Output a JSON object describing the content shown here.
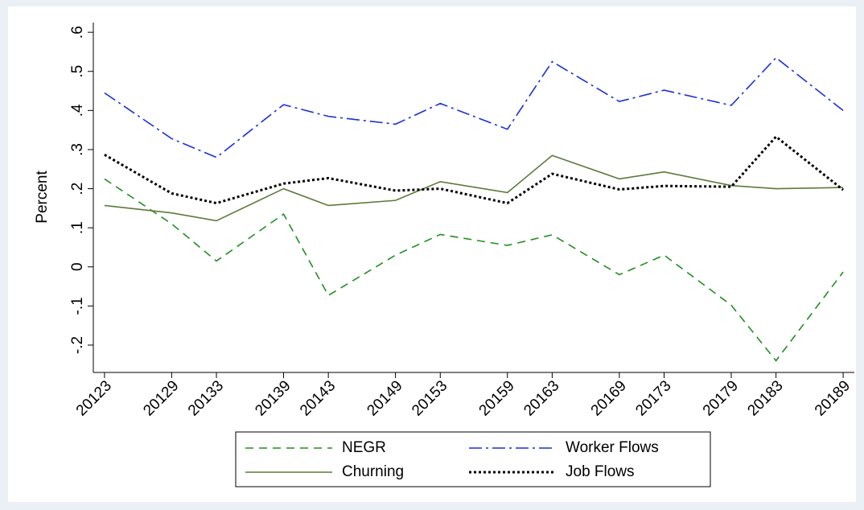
{
  "chart_data": {
    "type": "line",
    "y_label": "Percent",
    "x": [
      20123,
      20129,
      20133,
      20139,
      20143,
      20149,
      20153,
      20159,
      20163,
      20169,
      20173,
      20179,
      20183,
      20189
    ],
    "series": [
      {
        "name": "NEGR",
        "color": "#1f8f1f",
        "values": [
          0.225,
          0.11,
          0.015,
          0.135,
          -0.073,
          0.03,
          0.083,
          0.055,
          0.082,
          -0.02,
          0.03,
          -0.098,
          -0.24,
          -0.013
        ]
      },
      {
        "name": "Worker Flows",
        "color": "#1c2fd8",
        "values": [
          0.445,
          0.328,
          0.28,
          0.415,
          0.385,
          0.365,
          0.418,
          0.352,
          0.525,
          0.423,
          0.452,
          0.413,
          0.535,
          0.4
        ]
      },
      {
        "name": "Churning",
        "color": "#5b7a3b",
        "values": [
          0.157,
          0.138,
          0.118,
          0.2,
          0.157,
          0.17,
          0.218,
          0.19,
          0.285,
          0.225,
          0.243,
          0.208,
          0.2,
          0.203
        ]
      },
      {
        "name": "Job Flows",
        "color": "#000000",
        "values": [
          0.287,
          0.188,
          0.163,
          0.213,
          0.227,
          0.195,
          0.2,
          0.163,
          0.238,
          0.198,
          0.207,
          0.205,
          0.333,
          0.197
        ]
      }
    ],
    "xlim": [
      20122,
      20190
    ],
    "xticks": [
      20123,
      20129,
      20133,
      20139,
      20143,
      20149,
      20153,
      20159,
      20163,
      20169,
      20173,
      20179,
      20183,
      20189
    ],
    "ylim": [
      -0.27,
      0.625
    ],
    "yticks": [
      {
        "value": -0.2,
        "label": "-.2"
      },
      {
        "value": -0.1,
        "label": "-.1"
      },
      0,
      {
        "value": 0.1,
        "label": ".1"
      },
      {
        "value": 0.2,
        "label": ".2"
      },
      {
        "value": 0.3,
        "label": ".3"
      },
      {
        "value": 0.4,
        "label": ".4"
      },
      {
        "value": 0.5,
        "label": ".5"
      },
      {
        "value": 0.6,
        "label": ".6"
      }
    ],
    "grid": false,
    "legend_position": "bottom"
  }
}
